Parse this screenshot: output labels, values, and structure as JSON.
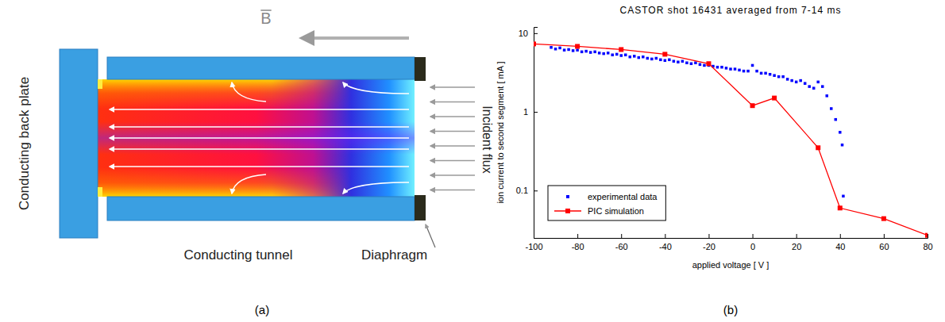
{
  "panel_labels": [
    "(a)",
    "(b)"
  ],
  "diagram": {
    "field": "B",
    "back_plate": "Conducting back plate",
    "tunnel": "Conducting tunnel",
    "diaphragm": "Diaphragm",
    "flux": "Incident flux"
  },
  "chart_data": {
    "type": "scatter",
    "title": "CASTOR shot 16431 averaged from 7-14 ms",
    "x_label": "applied voltage [ V ]",
    "y_label": "ion current to second segment [ mA ]",
    "log": "y",
    "grid": false,
    "legend": "lower-left",
    "xlim": [
      -100,
      80
    ],
    "xticks": [
      -100,
      -80,
      -60,
      -40,
      -20,
      0,
      20,
      40,
      60,
      80
    ],
    "ylim": [
      0.025,
      12
    ],
    "yticks": [
      0.1,
      1,
      10
    ],
    "series": [
      {
        "name": "experimental data",
        "type": "scatter",
        "marker": "square",
        "color": "#0000ff",
        "x": [
          -92,
          -90,
          -88,
          -86,
          -84,
          -82,
          -80,
          -78,
          -76,
          -74,
          -72,
          -70,
          -68,
          -66,
          -64,
          -62,
          -60,
          -58,
          -56,
          -54,
          -52,
          -50,
          -48,
          -46,
          -44,
          -42,
          -40,
          -38,
          -36,
          -34,
          -32,
          -30,
          -28,
          -26,
          -24,
          -22,
          -20,
          -18,
          -16,
          -14,
          -12,
          -10,
          -8,
          -6,
          -4,
          -2,
          0,
          2,
          4,
          6,
          8,
          10,
          12,
          14,
          16,
          18,
          20,
          22,
          24,
          26,
          28,
          30,
          32,
          34,
          36,
          38,
          40,
          41,
          41.5
        ],
        "values": [
          6.6,
          6.3,
          6.5,
          6.1,
          6.2,
          6.0,
          6.1,
          5.8,
          5.9,
          5.7,
          5.8,
          5.6,
          5.5,
          5.6,
          5.3,
          5.4,
          5.2,
          5.3,
          5.0,
          5.1,
          4.9,
          5.0,
          4.8,
          4.7,
          4.8,
          4.6,
          4.5,
          4.6,
          4.4,
          4.3,
          4.4,
          4.2,
          4.1,
          4.2,
          4.0,
          3.9,
          3.9,
          3.8,
          3.7,
          3.7,
          3.6,
          3.5,
          3.5,
          3.4,
          3.3,
          3.3,
          3.9,
          3.3,
          3.1,
          3.1,
          3.0,
          2.9,
          2.8,
          2.8,
          2.6,
          2.5,
          2.4,
          2.5,
          2.3,
          2.1,
          2.0,
          2.4,
          2.1,
          1.6,
          1.1,
          0.8,
          0.55,
          0.38,
          0.085
        ]
      },
      {
        "name": "PIC simulation",
        "type": "line",
        "marker": "square",
        "color": "#ff0000",
        "x": [
          -100,
          -80,
          -60,
          -40,
          -20,
          0,
          10,
          30,
          40,
          60,
          80
        ],
        "values": [
          7.3,
          6.8,
          6.2,
          5.4,
          4.1,
          1.2,
          1.5,
          0.35,
          0.06,
          0.044,
          0.027
        ]
      }
    ]
  }
}
